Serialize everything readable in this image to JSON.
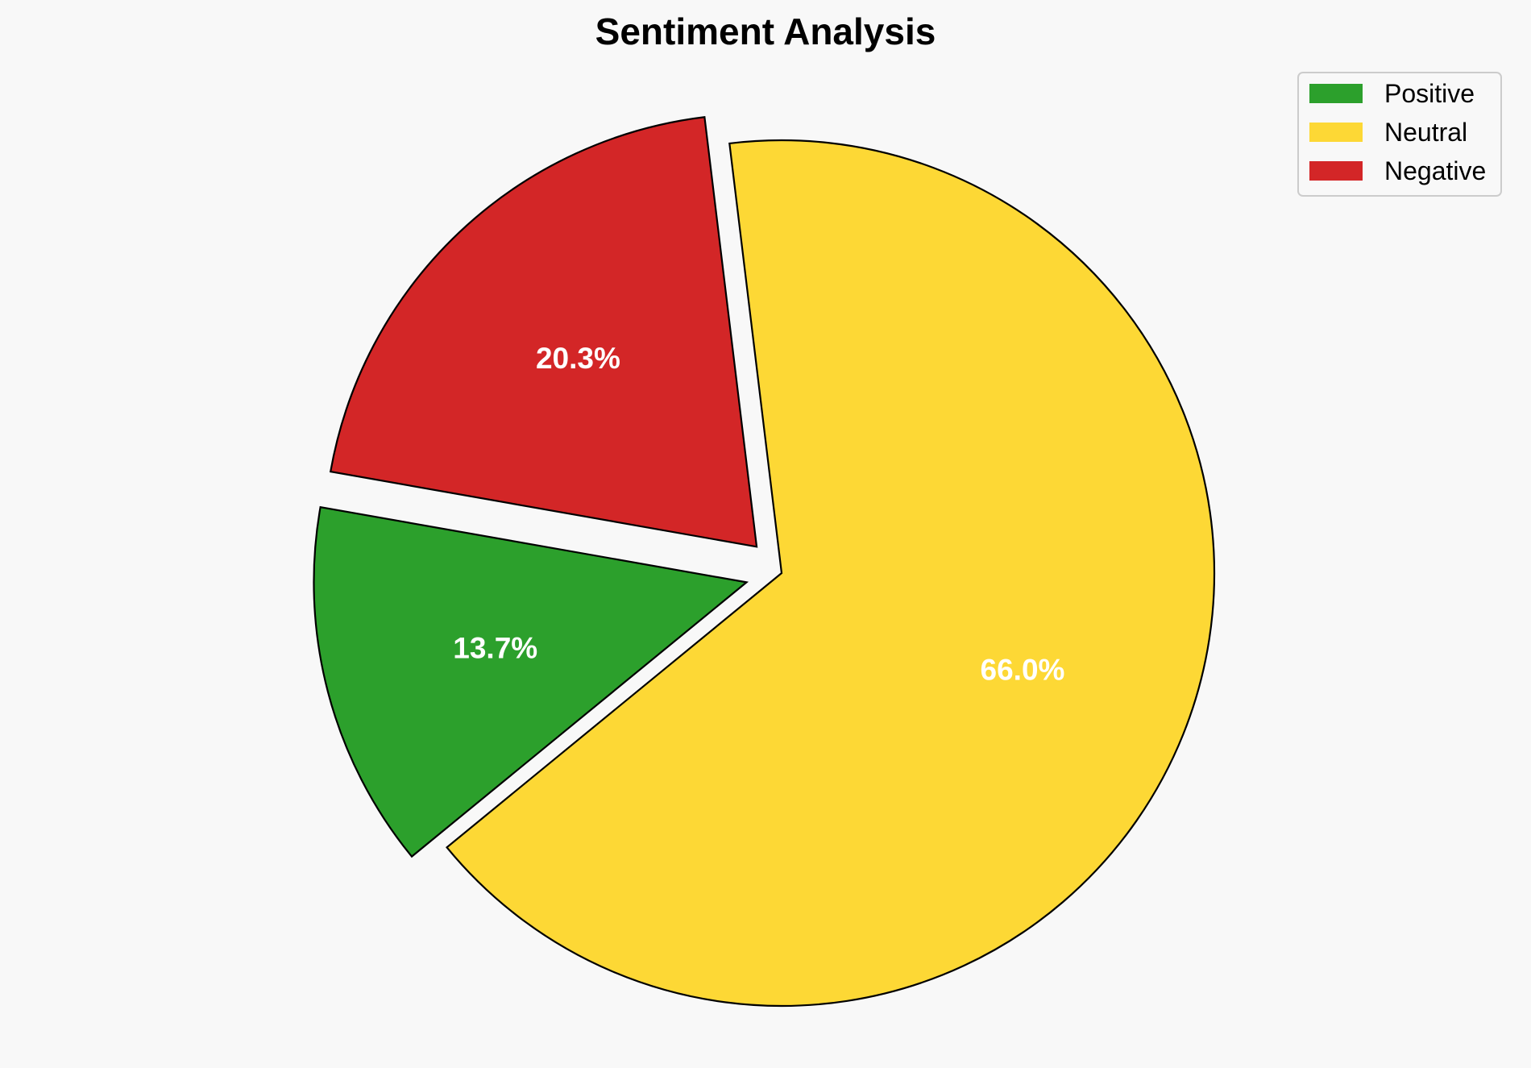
{
  "chart_data": {
    "type": "pie",
    "title": "Sentiment Analysis",
    "slices": [
      {
        "label": "Positive",
        "value": 13.7,
        "display": "13.7%",
        "color": "#2ca02c",
        "exploded": true
      },
      {
        "label": "Neutral",
        "value": 66.0,
        "display": "66.0%",
        "color": "#fdd835",
        "exploded": false
      },
      {
        "label": "Negative",
        "value": 20.3,
        "display": "20.3%",
        "color": "#d32627",
        "exploded": true
      }
    ],
    "legend": {
      "placement": "top-right",
      "entries": [
        "Positive",
        "Neutral",
        "Negative"
      ]
    },
    "slice_edge_color": "#000000",
    "label_color": "#ffffff",
    "background_color": "#f8f8f8"
  }
}
